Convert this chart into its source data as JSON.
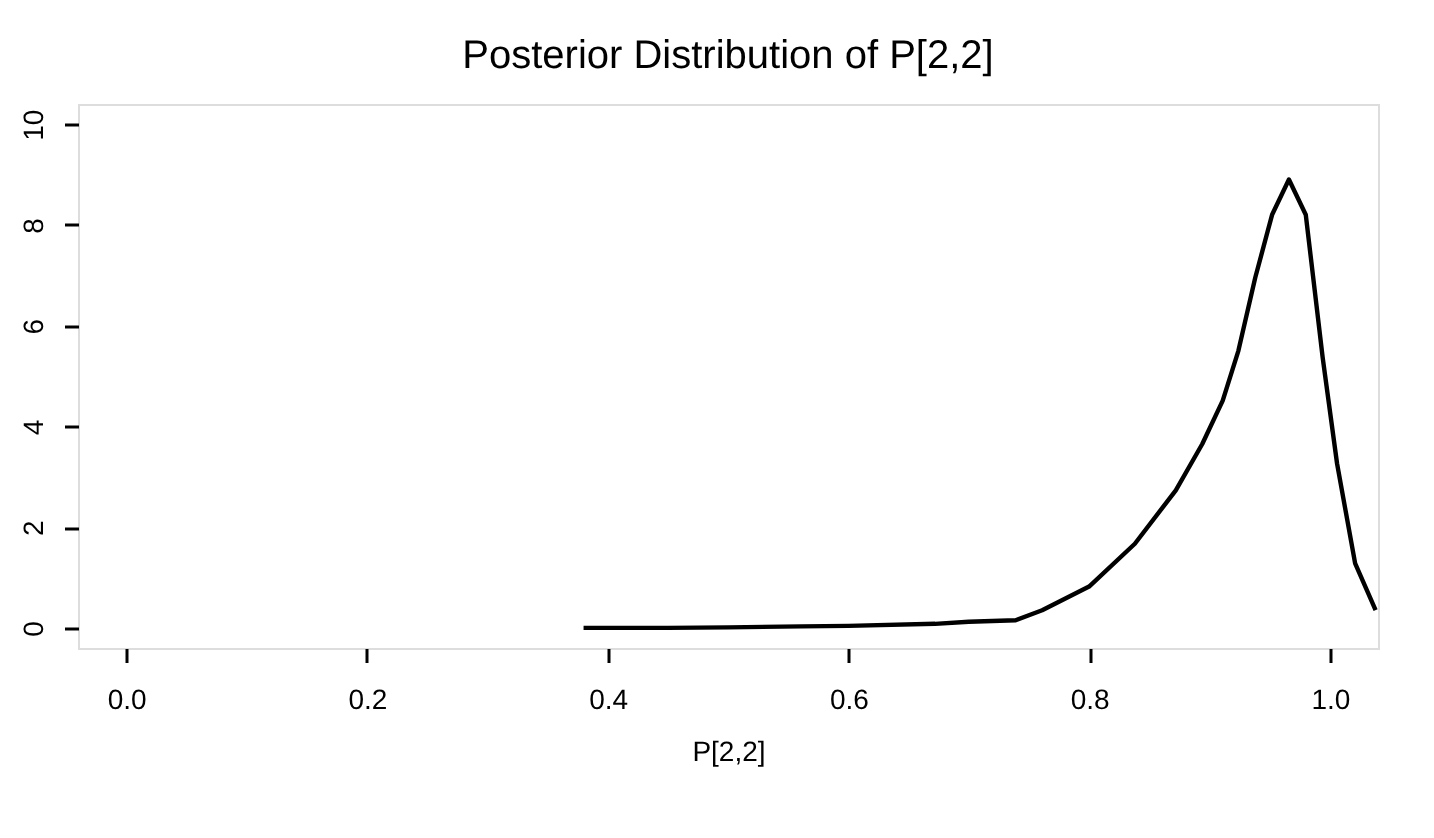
{
  "chart_data": {
    "type": "line",
    "title": "Posterior Distribution of P[2,2]",
    "xlabel": "P[2,2]",
    "x": [
      0.38,
      0.45,
      0.5,
      0.561,
      0.6,
      0.672,
      0.7,
      0.739,
      0.761,
      0.8,
      0.838,
      0.872,
      0.894,
      0.911,
      0.924,
      0.938,
      0.952,
      0.966,
      0.98,
      0.994,
      1.006,
      1.021,
      1.038
    ],
    "series": [
      {
        "color": "#000000",
        "values": [
          0.0,
          0.0,
          0.01,
          0.03,
          0.04,
          0.08,
          0.12,
          0.15,
          0.35,
          0.82,
          1.67,
          2.73,
          3.65,
          4.51,
          5.5,
          6.95,
          8.2,
          8.9,
          8.2,
          5.37,
          3.26,
          1.28,
          0.35
        ]
      }
    ],
    "xlim": [
      -0.04,
      1.04
    ],
    "ylim": [
      -0.4,
      10.4
    ],
    "xticks": [
      {
        "value": 0,
        "label": "0.0"
      },
      0.2,
      0.4,
      0.6,
      0.8,
      {
        "value": 1,
        "label": "1.0"
      }
    ],
    "yticks": [
      0,
      2,
      4,
      6,
      8,
      10
    ],
    "grid": false,
    "legend": false,
    "marker": "none",
    "line_style": "solid"
  }
}
